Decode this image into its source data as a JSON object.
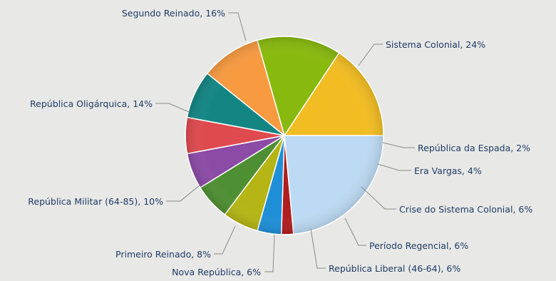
{
  "chart_data": {
    "type": "pie",
    "slices": [
      {
        "name": "Sistema Colonial",
        "value": 24,
        "label": "Sistema Colonial, 24%",
        "color": "#bcdaf3"
      },
      {
        "name": "República da Espada",
        "value": 2,
        "label": "República da Espada, 2%",
        "color": "#b01e1e"
      },
      {
        "name": "Era Vargas",
        "value": 4,
        "label": "Era Vargas, 4%",
        "color": "#1f8fd8"
      },
      {
        "name": "Crise do Sistema Colonial",
        "value": 6,
        "label": "Crise do Sistema Colonial, 6%",
        "color": "#b5b515"
      },
      {
        "name": "Período Regencial",
        "value": 6,
        "label": "Período Regencial, 6%",
        "color": "#4f8f33"
      },
      {
        "name": "República Liberal (46-64)",
        "value": 6,
        "label": "República Liberal (46-64), 6%",
        "color": "#8c4ba6"
      },
      {
        "name": "Nova República",
        "value": 6,
        "label": "Nova República, 6%",
        "color": "#df4a4e"
      },
      {
        "name": "Primeiro Reinado",
        "value": 8,
        "label": "Primeiro Reinado, 8%",
        "color": "#138684"
      },
      {
        "name": "República Militar (64-85)",
        "value": 10,
        "label": "República Militar (64-85), 10%",
        "color": "#f79a40"
      },
      {
        "name": "República Oligárquica",
        "value": 14,
        "label": "República Oligárquica, 14%",
        "color": "#88b90e"
      },
      {
        "name": "Segundo Reinado",
        "value": 16,
        "label": "Segundo Reinado, 16%",
        "color": "#f2bd22"
      }
    ]
  }
}
